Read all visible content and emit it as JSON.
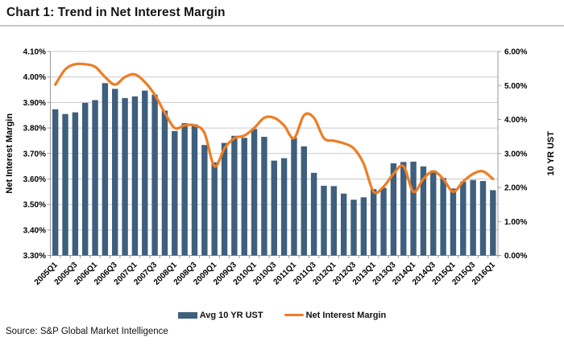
{
  "header": {
    "title": "Chart 1: Trend in Net Interest Margin"
  },
  "legend": {
    "bars_label": "Avg 10 YR UST",
    "line_label": "Net Interest Margin"
  },
  "source": {
    "text": "Source: S&P Global Market Intelligence"
  },
  "colors": {
    "bar": "#3e5f7e",
    "line": "#ee7d23",
    "grid": "#c9c9c9",
    "axis": "#9a9a9a",
    "text": "#000000"
  },
  "chart_data": {
    "type": "bar",
    "title": "Chart 1: Trend in Net Interest Margin",
    "categories": [
      "2005Q1",
      "2005Q2",
      "2005Q3",
      "2005Q4",
      "2006Q1",
      "2006Q2",
      "2006Q3",
      "2006Q4",
      "2007Q1",
      "2007Q2",
      "2007Q3",
      "2007Q4",
      "2008Q1",
      "2008Q2",
      "2008Q3",
      "2008Q4",
      "2009Q1",
      "2009Q2",
      "2009Q3",
      "2009Q4",
      "2010Q1",
      "2010Q2",
      "2010Q3",
      "2010Q4",
      "2011Q1",
      "2011Q2",
      "2011Q3",
      "2011Q4",
      "2012Q1",
      "2012Q2",
      "2012Q3",
      "2012Q4",
      "2013Q1",
      "2013Q2",
      "2013Q3",
      "2013Q4",
      "2014Q1",
      "2014Q2",
      "2014Q3",
      "2014Q4",
      "2015Q1",
      "2015Q2",
      "2015Q3",
      "2015Q4",
      "2016Q1"
    ],
    "x_tick_labels": [
      "2005Q1",
      "2005Q3",
      "2006Q1",
      "2006Q3",
      "2007Q1",
      "2007Q3",
      "2008Q1",
      "2008Q3",
      "2009Q1",
      "2009Q3",
      "2010Q1",
      "2010Q3",
      "2011Q1",
      "2011Q3",
      "2012Q1",
      "2012Q3",
      "2013Q1",
      "2013Q3",
      "2014Q1",
      "2014Q3",
      "2015Q1",
      "2015Q3",
      "2016Q1"
    ],
    "series": [
      {
        "name": "Avg 10 YR UST",
        "type": "bar",
        "axis": "right",
        "values": [
          4.3,
          4.16,
          4.21,
          4.49,
          4.57,
          5.07,
          4.9,
          4.63,
          4.68,
          4.85,
          4.73,
          4.26,
          3.66,
          3.89,
          3.86,
          3.25,
          2.74,
          3.31,
          3.52,
          3.46,
          3.72,
          3.49,
          2.79,
          2.86,
          3.46,
          3.21,
          2.43,
          2.05,
          2.04,
          1.82,
          1.64,
          1.71,
          1.95,
          1.99,
          2.71,
          2.75,
          2.76,
          2.62,
          2.5,
          2.28,
          1.97,
          2.17,
          2.22,
          2.19,
          1.92
        ]
      },
      {
        "name": "Net Interest Margin",
        "type": "line",
        "axis": "left",
        "values": [
          3.97,
          4.03,
          4.05,
          4.05,
          4.04,
          4.0,
          3.97,
          4.0,
          4.01,
          3.98,
          3.93,
          3.86,
          3.8,
          3.81,
          3.81,
          3.78,
          3.65,
          3.72,
          3.76,
          3.77,
          3.8,
          3.84,
          3.84,
          3.81,
          3.76,
          3.85,
          3.84,
          3.76,
          3.75,
          3.74,
          3.72,
          3.66,
          3.55,
          3.57,
          3.62,
          3.65,
          3.55,
          3.6,
          3.63,
          3.6,
          3.55,
          3.59,
          3.62,
          3.63,
          3.6
        ]
      }
    ],
    "left_axis": {
      "title": "Net Interest Margin",
      "min": 3.3,
      "max": 4.1,
      "step": 0.1,
      "tick_labels": [
        "4.10%",
        "4.00%",
        "3.90%",
        "3.80%",
        "3.70%",
        "3.60%",
        "3.50%",
        "3.40%",
        "3.30%"
      ]
    },
    "right_axis": {
      "title": "10 YR UST",
      "min": 0.0,
      "max": 6.0,
      "step": 1.0,
      "tick_labels": [
        "6.00%",
        "5.00%",
        "4.00%",
        "3.00%",
        "2.00%",
        "1.00%",
        "0.00%"
      ]
    },
    "grid": true,
    "legend_position": "bottom"
  }
}
